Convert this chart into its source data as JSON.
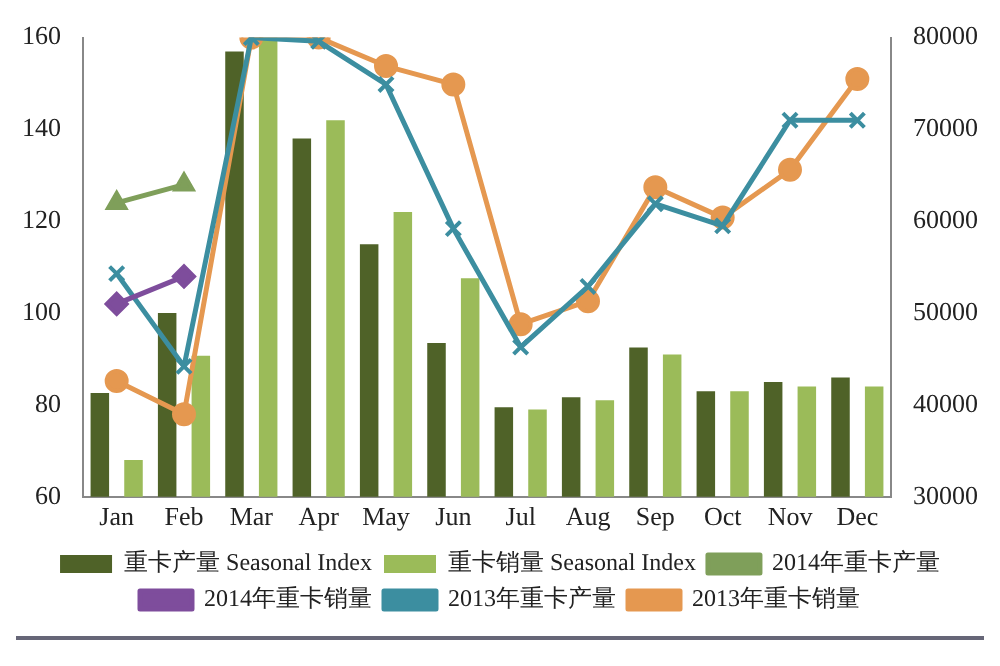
{
  "chart_data": {
    "type": "bar",
    "categories": [
      "Jan",
      "Feb",
      "Mar",
      "Apr",
      "May",
      "Jun",
      "Jul",
      "Aug",
      "Sep",
      "Oct",
      "Nov",
      "Dec"
    ],
    "series": [
      {
        "name": "重卡产量 Seasonal Index",
        "color": "#4f6228",
        "values": [
          82.6,
          100,
          157,
          138,
          115,
          93.5,
          79.5,
          81.7,
          92.5,
          83,
          85,
          86
        ]
      },
      {
        "name": "重卡销量 Seasonal Index",
        "color": "#9bbb59",
        "values": [
          68,
          90.7,
          160,
          142,
          122,
          107.6,
          79,
          81,
          91,
          83,
          84,
          84
        ]
      },
      {
        "name": "2014年重卡产量",
        "type": "line",
        "axis": "y2",
        "marker": "triangle",
        "color": "#7f9f5a",
        "values": [
          62000,
          64000,
          null,
          null,
          null,
          null,
          null,
          null,
          null,
          null,
          null,
          null
        ]
      },
      {
        "name": "2014年重卡销量",
        "type": "line",
        "axis": "y2",
        "marker": "diamond",
        "color": "#7e4d9c",
        "values": [
          51000,
          54000,
          null,
          null,
          null,
          null,
          null,
          null,
          null,
          null,
          null,
          null
        ]
      },
      {
        "name": "2013年重卡产量",
        "type": "line",
        "axis": "y2",
        "marker": "cross",
        "color": "#3c8ea0",
        "values": [
          54300,
          44200,
          80000,
          79600,
          74900,
          59200,
          46300,
          52900,
          61900,
          59500,
          71000,
          71000
        ]
      },
      {
        "name": "2013年重卡销量",
        "type": "line",
        "axis": "y2",
        "marker": "circle",
        "color": "#e59850",
        "values": [
          42600,
          39000,
          80000,
          80000,
          76900,
          74900,
          48800,
          51300,
          63700,
          60400,
          65600,
          75500
        ]
      }
    ],
    "ylim": [
      60,
      160
    ],
    "yticks": [
      60,
      80,
      100,
      120,
      140,
      160
    ],
    "y2lim": [
      30000,
      80000
    ],
    "y2ticks": [
      30000,
      40000,
      50000,
      60000,
      70000,
      80000
    ],
    "grid": false,
    "legend": "bottom",
    "line_style": "solid"
  }
}
